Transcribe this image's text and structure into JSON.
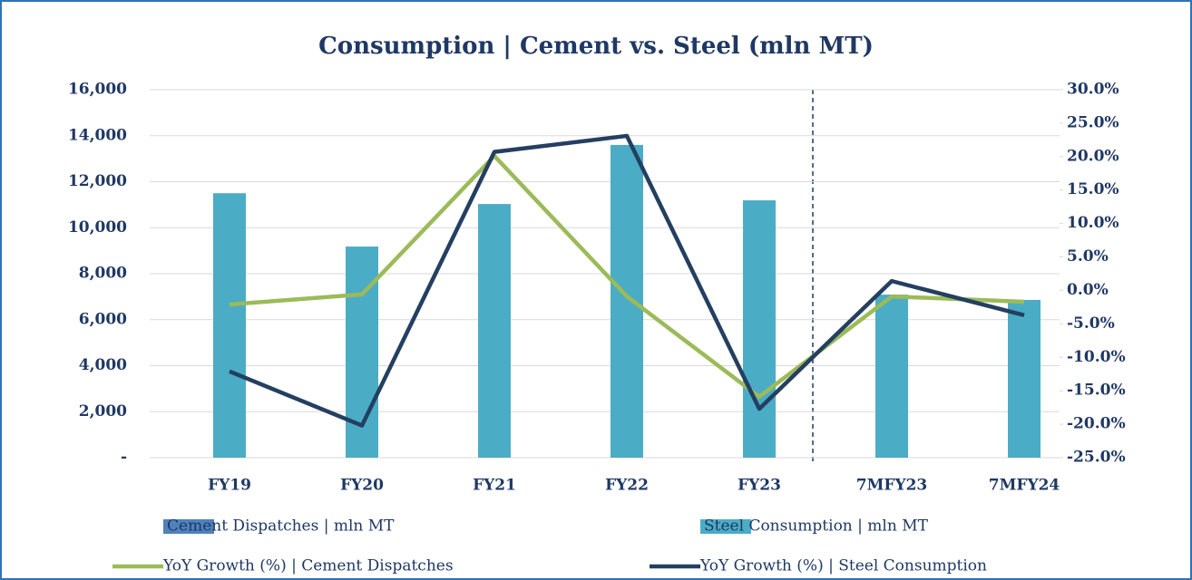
{
  "chart_data": {
    "type": "bar",
    "title": "Consumption | Cement vs. Steel (mln MT)",
    "categories": [
      "FY19",
      "FY20",
      "FY21",
      "FY22",
      "FY23",
      "7MFY23",
      "7MFY24"
    ],
    "series": [
      {
        "name": "Cement Dispatches | mln MT",
        "type": "bar",
        "color": "#4f81bd",
        "values": [
          null,
          null,
          null,
          null,
          null,
          null,
          null
        ]
      },
      {
        "name": "Steel Consumption | mln MT",
        "type": "bar",
        "color": "#4bacc6",
        "values": [
          11500,
          9180,
          11030,
          13600,
          11190,
          7090,
          6860
        ]
      },
      {
        "name": "YoY Growth (%) | Cement Dispatches",
        "type": "line",
        "axis": "y2",
        "color": "#9bbb59",
        "values": [
          -2.1,
          -0.6,
          20.1,
          -0.9,
          -15.9,
          -0.9,
          -1.7
        ]
      },
      {
        "name": "YoY Growth (%) | Steel Consumption",
        "type": "line",
        "axis": "y2",
        "color": "#243f60",
        "values": [
          -12.1,
          -20.2,
          20.7,
          23.1,
          -17.7,
          1.4,
          -3.7
        ]
      }
    ],
    "ylim": [
      0,
      16000
    ],
    "yticks": [
      {
        "value": 0,
        "label": "-"
      },
      {
        "value": 2000,
        "label": "2,000"
      },
      {
        "value": 4000,
        "label": "4,000"
      },
      {
        "value": 6000,
        "label": "6,000"
      },
      {
        "value": 8000,
        "label": "8,000"
      },
      {
        "value": 10000,
        "label": "10,000"
      },
      {
        "value": 12000,
        "label": "12,000"
      },
      {
        "value": 14000,
        "label": "14,000"
      },
      {
        "value": 16000,
        "label": "16,000"
      }
    ],
    "y2lim": [
      -25,
      30
    ],
    "y2ticks": [
      {
        "value": -25,
        "label": "-25.0%"
      },
      {
        "value": -20,
        "label": "-20.0%"
      },
      {
        "value": -15,
        "label": "-15.0%"
      },
      {
        "value": -10,
        "label": "-10.0%"
      },
      {
        "value": -5,
        "label": "-5.0%"
      },
      {
        "value": 0,
        "label": "0.0%"
      },
      {
        "value": 5,
        "label": "5.0%"
      },
      {
        "value": 10,
        "label": "10.0%"
      },
      {
        "value": 15,
        "label": "15.0%"
      },
      {
        "value": 20,
        "label": "20.0%"
      },
      {
        "value": 25,
        "label": "25.0%"
      },
      {
        "value": 30,
        "label": "30.0%"
      }
    ],
    "grid": true
  }
}
